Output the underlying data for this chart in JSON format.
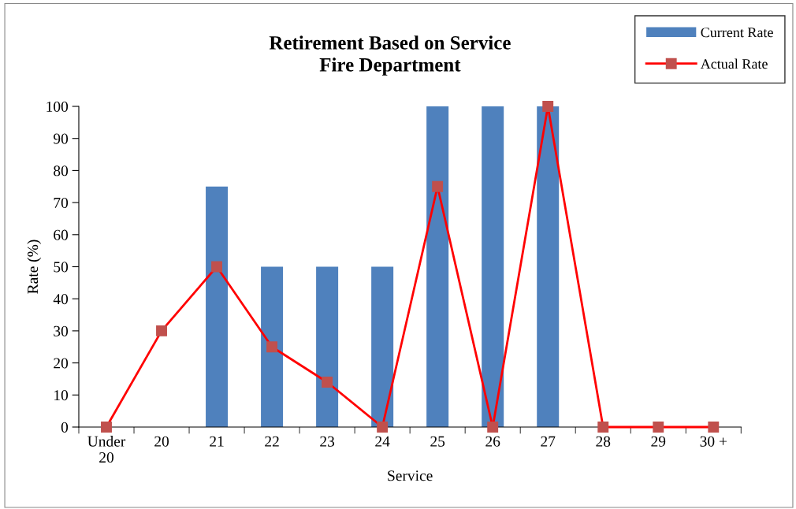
{
  "chart_data": {
    "type": "bar",
    "title": "Retirement Based on Service\nFire Department",
    "xlabel": "Service",
    "ylabel": "Rate (%)",
    "categories": [
      "Under\n20",
      "20",
      "21",
      "22",
      "23",
      "24",
      "25",
      "26",
      "27",
      "28",
      "29",
      "30 +"
    ],
    "series": [
      {
        "name": "Current Rate",
        "color": "#4f81bd",
        "values": [
          0,
          0,
          75,
          50,
          50,
          50,
          100,
          100,
          100,
          0,
          0,
          0
        ]
      },
      {
        "name": "Actual Rate",
        "type": "line",
        "color": "#ff0000",
        "marker": "square",
        "values": [
          0,
          30,
          50,
          25,
          14,
          0,
          75,
          0,
          100,
          0,
          0,
          0
        ]
      }
    ],
    "ylim": [
      0,
      100
    ],
    "yticks": [
      0,
      10,
      20,
      30,
      40,
      50,
      60,
      70,
      80,
      90,
      100
    ],
    "grid": false,
    "legend": "top right"
  }
}
